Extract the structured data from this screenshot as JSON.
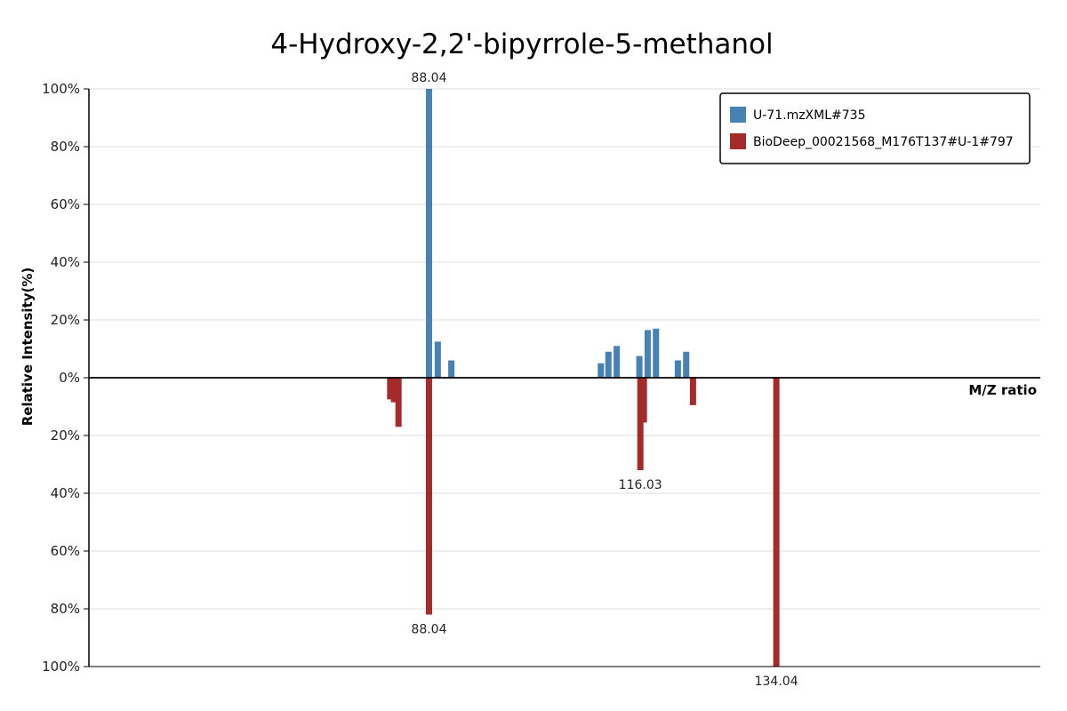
{
  "chart_data": {
    "type": "bar",
    "title": "4-Hydroxy-2,2'-bipyrrole-5-methanol",
    "xlabel": "M/Z ratio",
    "ylabel": "Relative Intensity(%)",
    "y_ticks_top": [
      "100%",
      "80%",
      "60%",
      "40%",
      "20%",
      "0%"
    ],
    "y_ticks_bottom": [
      "20%",
      "40%",
      "60%",
      "80%",
      "100%"
    ],
    "ylim": [
      -100,
      100
    ],
    "xlim": [
      43,
      169
    ],
    "grid": true,
    "legend_position": "top-right",
    "series": [
      {
        "name": "U-71.mzXML#735",
        "color": "#4682b4",
        "direction": "up",
        "points": [
          {
            "mz": 91.0,
            "intensity": 6
          },
          {
            "mz": 88.04,
            "intensity": 100,
            "label": "88.04"
          },
          {
            "mz": 89.2,
            "intensity": 12.5
          },
          {
            "mz": 110.8,
            "intensity": 5
          },
          {
            "mz": 111.8,
            "intensity": 9
          },
          {
            "mz": 112.9,
            "intensity": 11
          },
          {
            "mz": 115.9,
            "intensity": 7.5
          },
          {
            "mz": 117.0,
            "intensity": 16.5
          },
          {
            "mz": 118.1,
            "intensity": 17
          },
          {
            "mz": 121.0,
            "intensity": 6
          },
          {
            "mz": 122.1,
            "intensity": 9
          }
        ]
      },
      {
        "name": "BioDeep_00021568_M176T137#U-1#797",
        "color": "#a52a2a",
        "direction": "down",
        "points": [
          {
            "mz": 82.9,
            "intensity": 7.5
          },
          {
            "mz": 83.4,
            "intensity": 8.5
          },
          {
            "mz": 84.0,
            "intensity": 17
          },
          {
            "mz": 88.04,
            "intensity": 82,
            "label": "88.04"
          },
          {
            "mz": 116.03,
            "intensity": 32,
            "label": "116.03"
          },
          {
            "mz": 116.5,
            "intensity": 15.5
          },
          {
            "mz": 134.04,
            "intensity": 100,
            "label": "134.04"
          },
          {
            "mz": 123.0,
            "intensity": 9.5
          }
        ]
      }
    ]
  }
}
